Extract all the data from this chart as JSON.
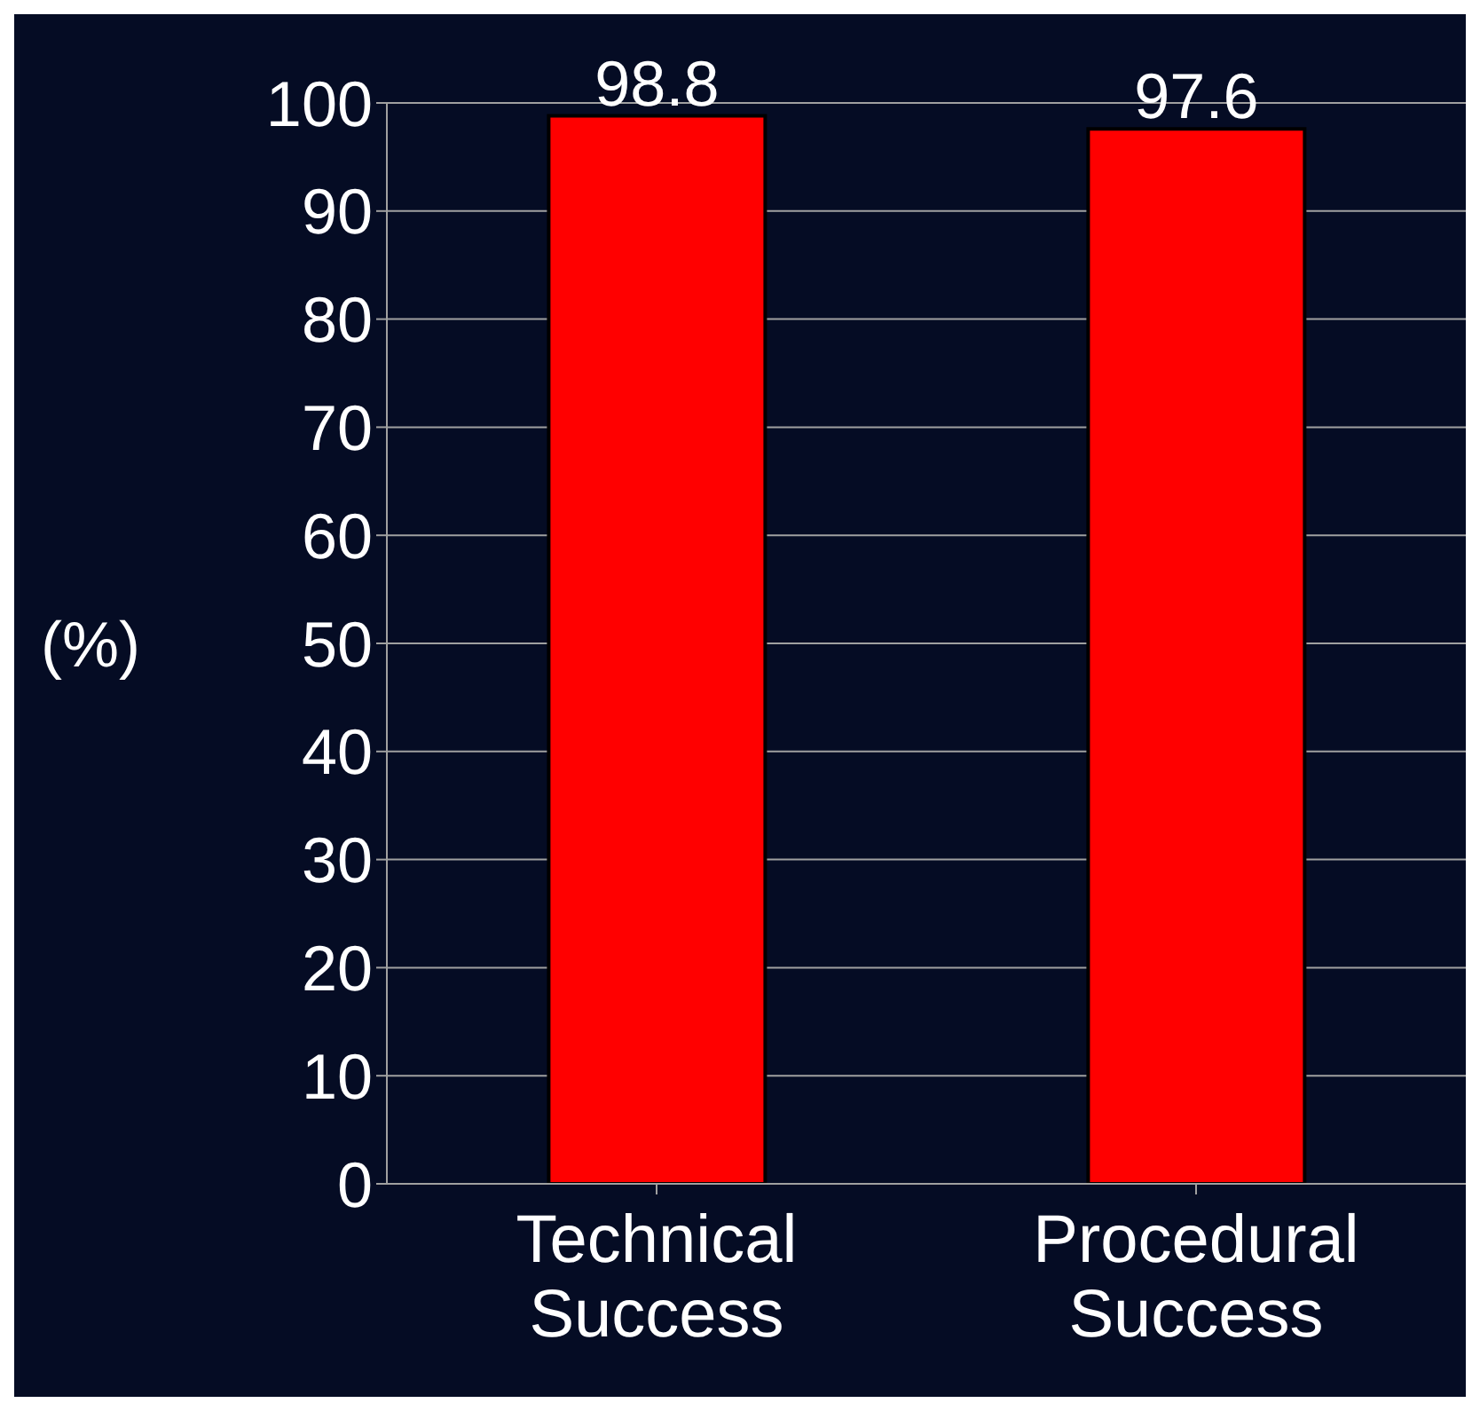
{
  "chart_data": {
    "type": "bar",
    "ylabel": "(%)",
    "categories": [
      "Technical Success",
      "Procedural Success"
    ],
    "values": [
      98.8,
      97.6
    ],
    "color": "#ff0000",
    "ylim": [
      0,
      100
    ],
    "yticks": [
      0,
      10,
      20,
      30,
      40,
      50,
      60,
      70,
      80,
      90,
      100
    ],
    "grid": "y",
    "data_labels": true
  }
}
